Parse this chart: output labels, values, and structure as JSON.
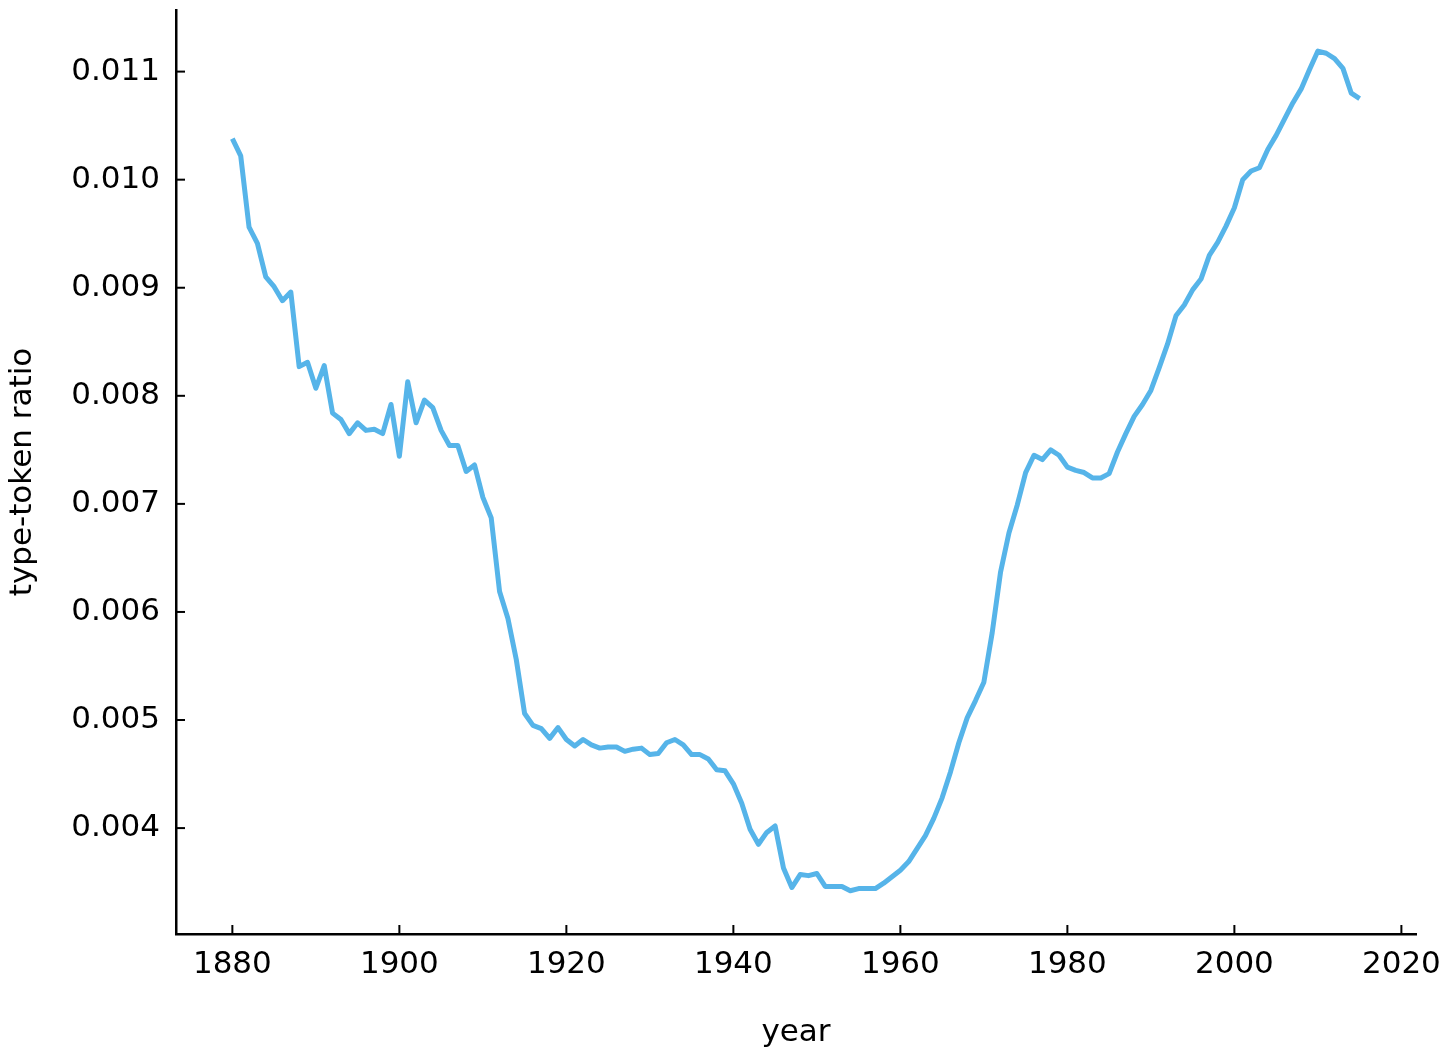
{
  "chart_data": {
    "type": "line",
    "xlabel": "year",
    "ylabel": "type-token ratio",
    "x": [
      1880,
      1881,
      1882,
      1883,
      1884,
      1885,
      1886,
      1887,
      1888,
      1889,
      1890,
      1891,
      1892,
      1893,
      1894,
      1895,
      1896,
      1897,
      1898,
      1899,
      1900,
      1901,
      1902,
      1903,
      1904,
      1905,
      1906,
      1907,
      1908,
      1909,
      1910,
      1911,
      1912,
      1913,
      1914,
      1915,
      1916,
      1917,
      1918,
      1919,
      1920,
      1921,
      1922,
      1923,
      1924,
      1925,
      1926,
      1927,
      1928,
      1929,
      1930,
      1931,
      1932,
      1933,
      1934,
      1935,
      1936,
      1937,
      1938,
      1939,
      1940,
      1941,
      1942,
      1943,
      1944,
      1945,
      1946,
      1947,
      1948,
      1949,
      1950,
      1951,
      1952,
      1953,
      1954,
      1955,
      1956,
      1957,
      1958,
      1959,
      1960,
      1961,
      1962,
      1963,
      1964,
      1965,
      1966,
      1967,
      1968,
      1969,
      1970,
      1971,
      1972,
      1973,
      1974,
      1975,
      1976,
      1977,
      1978,
      1979,
      1980,
      1981,
      1982,
      1983,
      1984,
      1985,
      1986,
      1987,
      1988,
      1989,
      1990,
      1991,
      1992,
      1993,
      1994,
      1995,
      1996,
      1997,
      1998,
      1999,
      2000,
      2001,
      2002,
      2003,
      2004,
      2005,
      2006,
      2007,
      2008,
      2009,
      2010,
      2011,
      2012,
      2013,
      2014,
      2015
    ],
    "values": [
      0.01038,
      0.01022,
      0.00956,
      0.00941,
      0.0091,
      0.00901,
      0.00888,
      0.00896,
      0.00827,
      0.00831,
      0.00807,
      0.00828,
      0.00784,
      0.00778,
      0.00765,
      0.00775,
      0.00768,
      0.00769,
      0.00765,
      0.00792,
      0.00744,
      0.00813,
      0.00775,
      0.00796,
      0.00789,
      0.00768,
      0.00754,
      0.00754,
      0.0073,
      0.00736,
      0.00706,
      0.00687,
      0.00619,
      0.00594,
      0.00556,
      0.00506,
      0.00495,
      0.00492,
      0.00483,
      0.00493,
      0.00482,
      0.00476,
      0.00482,
      0.00477,
      0.00474,
      0.00475,
      0.00475,
      0.00471,
      0.00473,
      0.00474,
      0.00468,
      0.00469,
      0.00479,
      0.00482,
      0.00477,
      0.00468,
      0.00468,
      0.00464,
      0.00454,
      0.00453,
      0.00441,
      0.00423,
      0.00399,
      0.00385,
      0.00396,
      0.00402,
      0.00363,
      0.00345,
      0.00357,
      0.00356,
      0.00358,
      0.00346,
      0.00346,
      0.00346,
      0.00342,
      0.00344,
      0.00344,
      0.00344,
      0.00349,
      0.00355,
      0.00361,
      0.00369,
      0.00381,
      0.00393,
      0.00409,
      0.00428,
      0.00452,
      0.00479,
      0.00502,
      0.00518,
      0.00535,
      0.00581,
      0.00637,
      0.00673,
      0.00699,
      0.00729,
      0.00745,
      0.00741,
      0.0075,
      0.00745,
      0.00734,
      0.00731,
      0.00729,
      0.00724,
      0.00724,
      0.00728,
      0.00748,
      0.00765,
      0.00781,
      0.00792,
      0.00805,
      0.00826,
      0.00848,
      0.00874,
      0.00884,
      0.00898,
      0.00908,
      0.0093,
      0.00942,
      0.00957,
      0.00974,
      0.01,
      0.01008,
      0.01011,
      0.01028,
      0.01041,
      0.01056,
      0.01071,
      0.01084,
      0.01102,
      0.01119,
      0.01117,
      0.01112,
      0.01103,
      0.0108,
      0.01075
    ],
    "color": "#56b4e9",
    "xlim": [
      1873.25,
      2021.75
    ],
    "xticks": [
      1880,
      1900,
      1920,
      1940,
      1960,
      1980,
      2000,
      2020
    ],
    "ylim": [
      0.00302,
      0.01157
    ],
    "yticks": [
      0.004,
      0.005,
      0.006,
      0.007,
      0.008,
      0.009,
      {
        "value": 0.01,
        "label": "0.010"
      },
      0.011
    ]
  }
}
